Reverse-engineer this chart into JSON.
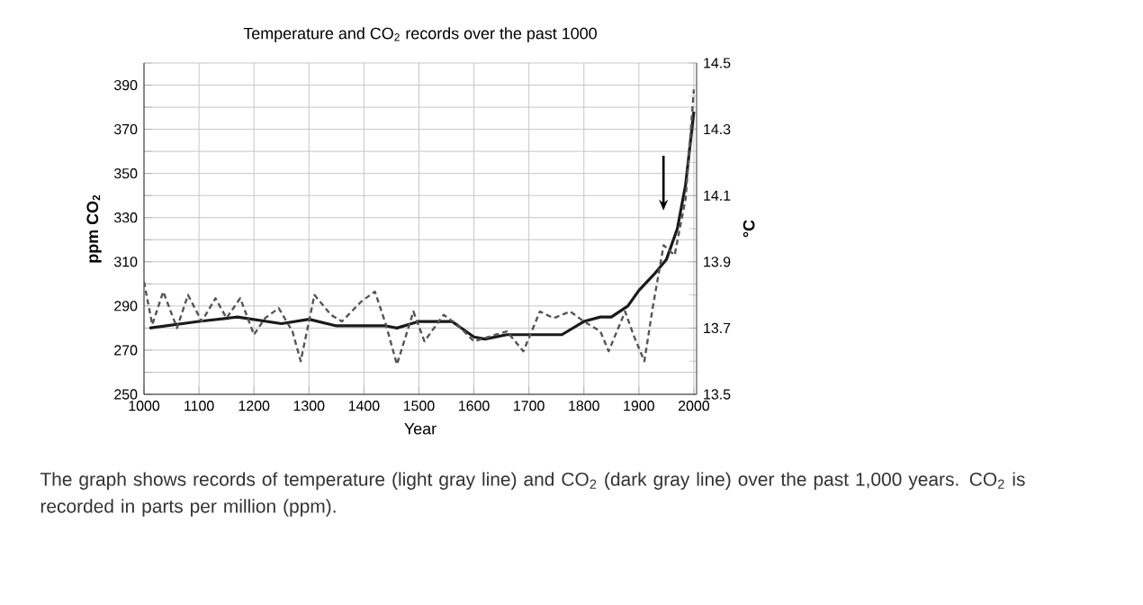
{
  "chart_data": {
    "type": "line",
    "title": "Temperature and CO$_{2}$ records over the past 1000",
    "xlabel": "Year",
    "ylabel": "ppm CO$_{2}$",
    "y2label": "°C",
    "annotations": [
      "The graph shows records of temperature (light gray line) and CO$_{2}$ (dark gray line) over the past 1,000 years. CO$_{2}$ is recorded in parts per million (ppm)."
    ],
    "xlim": [
      1000,
      2005
    ],
    "xticks": [
      1000,
      1100,
      1200,
      1300,
      1400,
      1500,
      1600,
      1700,
      1800,
      1900,
      2000
    ],
    "ylim": [
      250,
      400
    ],
    "yticks": [
      250,
      {
        "value": 260,
        "label": null
      },
      270,
      {
        "value": 280,
        "label": null
      },
      290,
      {
        "value": 300,
        "label": null
      },
      310,
      {
        "value": 320,
        "label": null
      },
      330,
      {
        "value": 340,
        "label": null
      },
      350,
      {
        "value": 360,
        "label": null
      },
      370,
      {
        "value": 380,
        "label": null
      },
      390,
      {
        "value": 400,
        "label": null
      }
    ],
    "y2lim": [
      13.5,
      14.5
    ],
    "y2ticks": [
      13.5,
      {
        "value": 13.6,
        "label": null
      },
      13.7,
      {
        "value": 13.8,
        "label": null
      },
      13.9,
      {
        "value": 14.0,
        "label": null
      },
      14.1,
      {
        "value": 14.2,
        "label": null
      },
      14.3,
      {
        "value": 14.4,
        "label": null
      },
      14.5
    ],
    "grid": true,
    "marker": "none",
    "series": [
      {
        "color": "#1a1a1a",
        "line_style": "solid",
        "x": [
          1010,
          1100,
          1170,
          1250,
          1300,
          1350,
          1440,
          1460,
          1500,
          1560,
          1600,
          1620,
          1660,
          1700,
          1760,
          1800,
          1830,
          1850,
          1880,
          1900,
          1930,
          1950,
          1970,
          1985,
          2000
        ],
        "values": [
          280,
          283,
          285,
          282,
          284,
          281,
          281,
          280,
          283,
          283,
          276,
          275,
          277,
          277,
          277,
          283,
          285,
          285,
          290,
          297,
          305,
          311,
          325,
          345,
          378
        ]
      },
      {
        "color": "#555555",
        "line_style": "dashed",
        "axis": "y2",
        "x": [
          1000,
          1015,
          1035,
          1060,
          1080,
          1105,
          1130,
          1150,
          1175,
          1200,
          1220,
          1245,
          1270,
          1285,
          1310,
          1340,
          1360,
          1395,
          1420,
          1440,
          1460,
          1490,
          1510,
          1545,
          1570,
          1600,
          1640,
          1660,
          1690,
          1720,
          1745,
          1775,
          1800,
          1830,
          1845,
          1875,
          1890,
          1910,
          1925,
          1945,
          1965,
          1985,
          2000
        ],
        "values": [
          13.84,
          13.71,
          13.81,
          13.7,
          13.8,
          13.72,
          13.79,
          13.73,
          13.79,
          13.68,
          13.73,
          13.76,
          13.69,
          13.6,
          13.8,
          13.74,
          13.72,
          13.78,
          13.81,
          13.71,
          13.59,
          13.75,
          13.66,
          13.74,
          13.71,
          13.66,
          13.68,
          13.69,
          13.63,
          13.75,
          13.73,
          13.75,
          13.72,
          13.69,
          13.63,
          13.75,
          13.68,
          13.6,
          13.76,
          13.95,
          13.92,
          14.09,
          14.42
        ]
      }
    ]
  }
}
